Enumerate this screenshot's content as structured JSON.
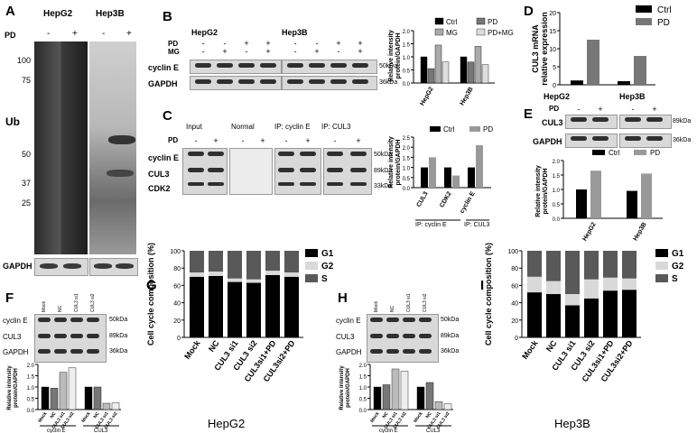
{
  "panels": {
    "A": "A",
    "B": "B",
    "C": "C",
    "D": "D",
    "E": "E",
    "F": "F",
    "G": "G",
    "H": "H",
    "I": "I"
  },
  "cells": {
    "hepg2": "HepG2",
    "hep3b": "Hep3B"
  },
  "common": {
    "pd": "PD",
    "mg": "MG",
    "minus": "-",
    "plus": "+",
    "gapdh": "GAPDH",
    "cyclinE": "cyclin E",
    "cul3": "CUL3",
    "cdk2": "CDK2",
    "kda50": "50kDa",
    "kda36": "36kDa",
    "kda89": "89kDa",
    "kda33": "33kDa",
    "ri_line1": "Relative intensity",
    "ri_line2": "protein/GAPDH"
  },
  "panelA": {
    "markers": [
      "100",
      "75",
      "50",
      "37",
      "25"
    ],
    "ub": "Ub"
  },
  "panelB": {
    "legend": [
      "Ctrl",
      "PD",
      "MG",
      "PD+MG"
    ]
  },
  "panelC": {
    "headers": [
      "Input",
      "Normal",
      "IP: cyclin E",
      "IP: CUL3"
    ],
    "legend": [
      "Ctrl",
      "PD"
    ],
    "xcats": [
      "CUL3",
      "CDK2",
      "cyclin E"
    ],
    "groups": [
      "IP: cyclin E",
      "IP: CUL3"
    ]
  },
  "panelD": {
    "legend": [
      "Ctrl",
      "PD"
    ],
    "ylabel1": "CUL3 mRNA",
    "ylabel2": "relative expression",
    "yticks": [
      "0",
      "5",
      "10",
      "15",
      "20"
    ]
  },
  "panelE": {
    "legend": [
      "Ctrl",
      "PD"
    ],
    "yticks": [
      "0.0",
      "0.5",
      "1.0",
      "1.5",
      "2.0"
    ]
  },
  "panelF": {
    "lanes": [
      "Mock",
      "NC",
      "CUL3 si1",
      "CUL3 si2"
    ],
    "xcats": [
      "Mock",
      "NC",
      "CUL3 si1",
      "CUL3 si2",
      "Mock",
      "NC",
      "CUL3 si1",
      "CUL3 si2"
    ],
    "groups": [
      "cyclin E",
      "CUL3"
    ],
    "yticks": [
      "0.0",
      "0.5",
      "1.0",
      "1.5",
      "2.0"
    ]
  },
  "panelH": {
    "lanes": [
      "Mock",
      "NC",
      "CUL3 si1",
      "CUL3 si2"
    ],
    "xcats": [
      "Mock",
      "NC",
      "CUL3 si1",
      "CUL3 si2",
      "Mock",
      "NC",
      "CUL3 si1",
      "CUL3 si2"
    ],
    "groups": [
      "cyclin E",
      "CUL3"
    ],
    "yticks": [
      "0.0",
      "0.5",
      "1.0",
      "1.5",
      "2.0"
    ]
  },
  "panelG": {
    "ylabel": "Cell cycle composition (%)",
    "legend": [
      "G1",
      "G2",
      "S"
    ],
    "cats": [
      "Mock",
      "NC",
      "CUL3 si1",
      "CUL3 si2",
      "CUL3si1+PD",
      "CUL3si2+PD"
    ],
    "yticks": [
      "0",
      "20",
      "40",
      "60",
      "80",
      "100"
    ]
  },
  "panelI": {
    "ylabel": "Cell cycle composition (%)",
    "legend": [
      "G1",
      "G2",
      "S"
    ],
    "cats": [
      "Mock",
      "NC",
      "CUL3 si1",
      "CUL3 si2",
      "CUL3si1+PD",
      "CUL3si2+PD"
    ],
    "yticks": [
      "0",
      "20",
      "40",
      "60",
      "80",
      "100"
    ]
  },
  "chart_data": [
    {
      "panel": "B",
      "type": "bar",
      "categories": [
        "HepG2",
        "Hep3B"
      ],
      "ylabel": "Relative intensity protein/GAPDH",
      "ylim": [
        0,
        2.0
      ],
      "series": [
        {
          "name": "Ctrl",
          "values": [
            1.0,
            1.0
          ]
        },
        {
          "name": "PD",
          "values": [
            0.55,
            0.8
          ]
        },
        {
          "name": "MG",
          "values": [
            1.45,
            1.4
          ]
        },
        {
          "name": "PD+MG",
          "values": [
            0.8,
            0.7
          ]
        }
      ]
    },
    {
      "panel": "C",
      "type": "bar",
      "categories": [
        "CUL3",
        "CDK2",
        "cyclin E"
      ],
      "ylim": [
        0,
        2.5
      ],
      "series": [
        {
          "name": "Ctrl",
          "values": [
            1.0,
            1.0,
            1.0
          ]
        },
        {
          "name": "PD",
          "values": [
            1.5,
            0.6,
            2.1
          ]
        }
      ]
    },
    {
      "panel": "D",
      "type": "bar",
      "categories": [
        "HepG2",
        "Hep3B"
      ],
      "ylim": [
        0,
        20
      ],
      "series": [
        {
          "name": "Ctrl",
          "values": [
            1.2,
            1.0
          ]
        },
        {
          "name": "PD",
          "values": [
            12.5,
            8.0
          ]
        }
      ]
    },
    {
      "panel": "E",
      "type": "bar",
      "categories": [
        "HepG2",
        "Hep3B"
      ],
      "ylim": [
        0,
        2.0
      ],
      "series": [
        {
          "name": "Ctrl",
          "values": [
            1.0,
            0.95
          ]
        },
        {
          "name": "PD",
          "values": [
            1.65,
            1.55
          ]
        }
      ]
    },
    {
      "panel": "F",
      "type": "bar",
      "categories": [
        "Mock",
        "NC",
        "CUL3 si1",
        "CUL3 si2",
        "Mock",
        "NC",
        "CUL3 si1",
        "CUL3 si2"
      ],
      "ylim": [
        0,
        2.0
      ],
      "values": [
        1.0,
        0.95,
        1.65,
        1.85,
        1.0,
        1.0,
        0.28,
        0.3
      ]
    },
    {
      "panel": "H",
      "type": "bar",
      "categories": [
        "Mock",
        "NC",
        "CUL3 si1",
        "CUL3 si2",
        "Mock",
        "NC",
        "CUL3 si1",
        "CUL3 si2"
      ],
      "ylim": [
        0,
        2.0
      ],
      "values": [
        1.0,
        1.1,
        1.8,
        1.7,
        1.0,
        1.2,
        0.35,
        0.25
      ]
    },
    {
      "panel": "G",
      "type": "bar",
      "categories": [
        "Mock",
        "NC",
        "CUL3 si1",
        "CUL3 si2",
        "CUL3si1+PD",
        "CUL3si2+PD"
      ],
      "ylim": [
        0,
        100
      ],
      "series": [
        {
          "name": "G1",
          "values": [
            70,
            71,
            64,
            63,
            72,
            70
          ]
        },
        {
          "name": "G2",
          "values": [
            5,
            5,
            4,
            4,
            5,
            5
          ]
        },
        {
          "name": "S",
          "values": [
            25,
            24,
            32,
            33,
            23,
            25
          ]
        }
      ]
    },
    {
      "panel": "I",
      "type": "bar",
      "categories": [
        "Mock",
        "NC",
        "CUL3 si1",
        "CUL3 si2",
        "CUL3si1+PD",
        "CUL3si2+PD"
      ],
      "ylim": [
        0,
        100
      ],
      "series": [
        {
          "name": "G1",
          "values": [
            52,
            50,
            37,
            45,
            54,
            55
          ]
        },
        {
          "name": "G2",
          "values": [
            18,
            15,
            13,
            22,
            15,
            13
          ]
        },
        {
          "name": "S",
          "values": [
            30,
            35,
            50,
            33,
            31,
            32
          ]
        }
      ]
    }
  ]
}
